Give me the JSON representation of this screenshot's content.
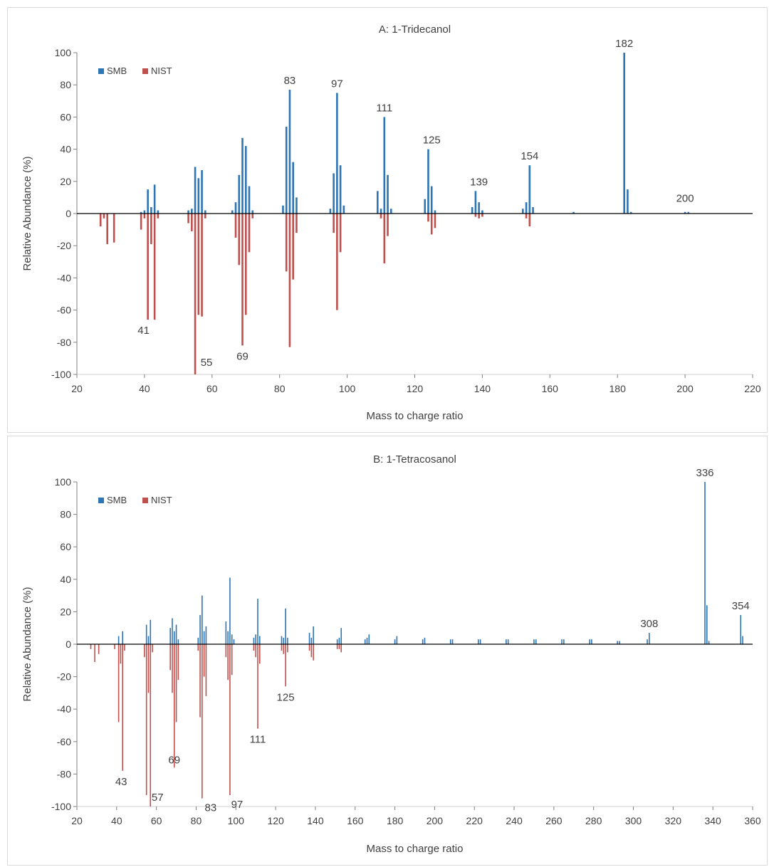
{
  "chart_data": [
    {
      "type": "bar",
      "title": "A: 1-Tridecanol",
      "xlabel": "Mass to charge ratio",
      "ylabel": "Relative Abundance (%)",
      "xlim": [
        20,
        220
      ],
      "ylim": [
        -100,
        100
      ],
      "xticks": [
        20,
        40,
        60,
        80,
        100,
        120,
        140,
        160,
        180,
        200,
        220
      ],
      "yticks": [
        -100,
        -80,
        -60,
        -40,
        -20,
        0,
        20,
        40,
        60,
        80,
        100
      ],
      "legend": {
        "position": "top-left",
        "colors": {
          "SMB": "#2e75b6",
          "NIST": "#c0504d"
        }
      },
      "series": [
        {
          "name": "SMB",
          "color": "#2e75b6",
          "x": [
            39,
            40,
            41,
            42,
            43,
            44,
            53,
            54,
            55,
            56,
            57,
            58,
            66,
            67,
            68,
            69,
            70,
            71,
            72,
            81,
            82,
            83,
            84,
            85,
            95,
            96,
            97,
            98,
            99,
            109,
            110,
            111,
            112,
            113,
            123,
            124,
            125,
            126,
            137,
            138,
            139,
            140,
            152,
            153,
            154,
            155,
            167,
            182,
            183,
            184,
            200,
            201
          ],
          "values": [
            1,
            2,
            15,
            4,
            18,
            2,
            2,
            3,
            29,
            22,
            27,
            2,
            2,
            7,
            24,
            47,
            42,
            17,
            2,
            5,
            54,
            77,
            32,
            10,
            3,
            25,
            75,
            30,
            5,
            14,
            3,
            60,
            24,
            3,
            9,
            40,
            17,
            2,
            4,
            14,
            7,
            2,
            3,
            7,
            30,
            4,
            1,
            100,
            15,
            1,
            1,
            1
          ]
        },
        {
          "name": "NIST",
          "color": "#c0504d",
          "x": [
            27,
            28,
            29,
            31,
            39,
            40,
            41,
            42,
            43,
            44,
            53,
            54,
            55,
            56,
            57,
            58,
            67,
            68,
            69,
            70,
            71,
            72,
            82,
            83,
            84,
            85,
            96,
            97,
            98,
            110,
            111,
            112,
            124,
            125,
            126,
            138,
            139,
            140,
            153,
            154
          ],
          "values": [
            -8,
            -3,
            -19,
            -18,
            -10,
            -3,
            -66,
            -19,
            -66,
            -3,
            -6,
            -11,
            -100,
            -63,
            -64,
            -3,
            -15,
            -32,
            -82,
            -63,
            -24,
            -3,
            -36,
            -83,
            -41,
            -12,
            -12,
            -60,
            -24,
            -3,
            -31,
            -14,
            -5,
            -13,
            -9,
            -2,
            -3,
            -2,
            -3,
            -8
          ]
        }
      ],
      "annotations": [
        "182",
        "83",
        "97",
        "111",
        "125",
        "139",
        "154",
        "200",
        "41",
        "55",
        "69"
      ]
    },
    {
      "type": "bar",
      "title": "B: 1-Tetracosanol",
      "xlabel": "Mass to charge ratio",
      "ylabel": "Relative Abundance (%)",
      "xlim": [
        20,
        360
      ],
      "ylim": [
        -100,
        100
      ],
      "xticks": [
        20,
        40,
        60,
        80,
        100,
        120,
        140,
        160,
        180,
        200,
        220,
        240,
        260,
        280,
        300,
        320,
        340,
        360
      ],
      "yticks": [
        -100,
        -80,
        -60,
        -40,
        -20,
        0,
        20,
        40,
        60,
        80,
        100
      ],
      "legend": {
        "position": "top-left",
        "colors": {
          "SMB": "#2e75b6",
          "NIST": "#c0504d"
        }
      },
      "series": [
        {
          "name": "SMB",
          "color": "#2e75b6",
          "x": [
            41,
            43,
            55,
            56,
            57,
            67,
            68,
            69,
            70,
            71,
            81,
            82,
            83,
            84,
            85,
            95,
            96,
            97,
            98,
            99,
            109,
            110,
            111,
            112,
            123,
            124,
            125,
            126,
            137,
            138,
            139,
            151,
            152,
            153,
            165,
            166,
            167,
            180,
            181,
            194,
            195,
            208,
            209,
            222,
            223,
            236,
            237,
            250,
            251,
            264,
            265,
            278,
            279,
            292,
            293,
            307,
            308,
            336,
            337,
            338,
            354,
            355
          ],
          "values": [
            5,
            8,
            12,
            5,
            15,
            10,
            16,
            8,
            12,
            3,
            4,
            18,
            30,
            8,
            11,
            14,
            8,
            41,
            6,
            3,
            4,
            6,
            28,
            5,
            5,
            4,
            22,
            4,
            7,
            4,
            11,
            3,
            4,
            10,
            3,
            4,
            6,
            3,
            5,
            3,
            4,
            3,
            3,
            3,
            3,
            3,
            3,
            3,
            3,
            3,
            3,
            3,
            3,
            2,
            2,
            3,
            7,
            100,
            24,
            2,
            18,
            5
          ]
        },
        {
          "name": "NIST",
          "color": "#c0504d",
          "x": [
            27,
            29,
            31,
            39,
            41,
            42,
            43,
            44,
            54,
            55,
            56,
            57,
            58,
            67,
            68,
            69,
            70,
            71,
            81,
            82,
            83,
            84,
            85,
            95,
            96,
            97,
            98,
            109,
            110,
            111,
            112,
            123,
            124,
            125,
            126,
            137,
            138,
            139,
            151,
            152,
            153
          ],
          "values": [
            -3,
            -11,
            -6,
            -3,
            -48,
            -12,
            -78,
            -4,
            -8,
            -93,
            -30,
            -100,
            -5,
            -16,
            -30,
            -76,
            -48,
            -22,
            -4,
            -45,
            -95,
            -20,
            -32,
            -8,
            -22,
            -93,
            -19,
            -4,
            -8,
            -52,
            -12,
            -4,
            -6,
            -26,
            -5,
            -4,
            -8,
            -10,
            -3,
            -3,
            -5
          ]
        }
      ],
      "annotations": [
        "336",
        "354",
        "308",
        "125",
        "111",
        "43",
        "57",
        "69",
        "83",
        "97"
      ]
    }
  ],
  "legend_labels": {
    "smb": "SMB",
    "nist": "NIST"
  }
}
